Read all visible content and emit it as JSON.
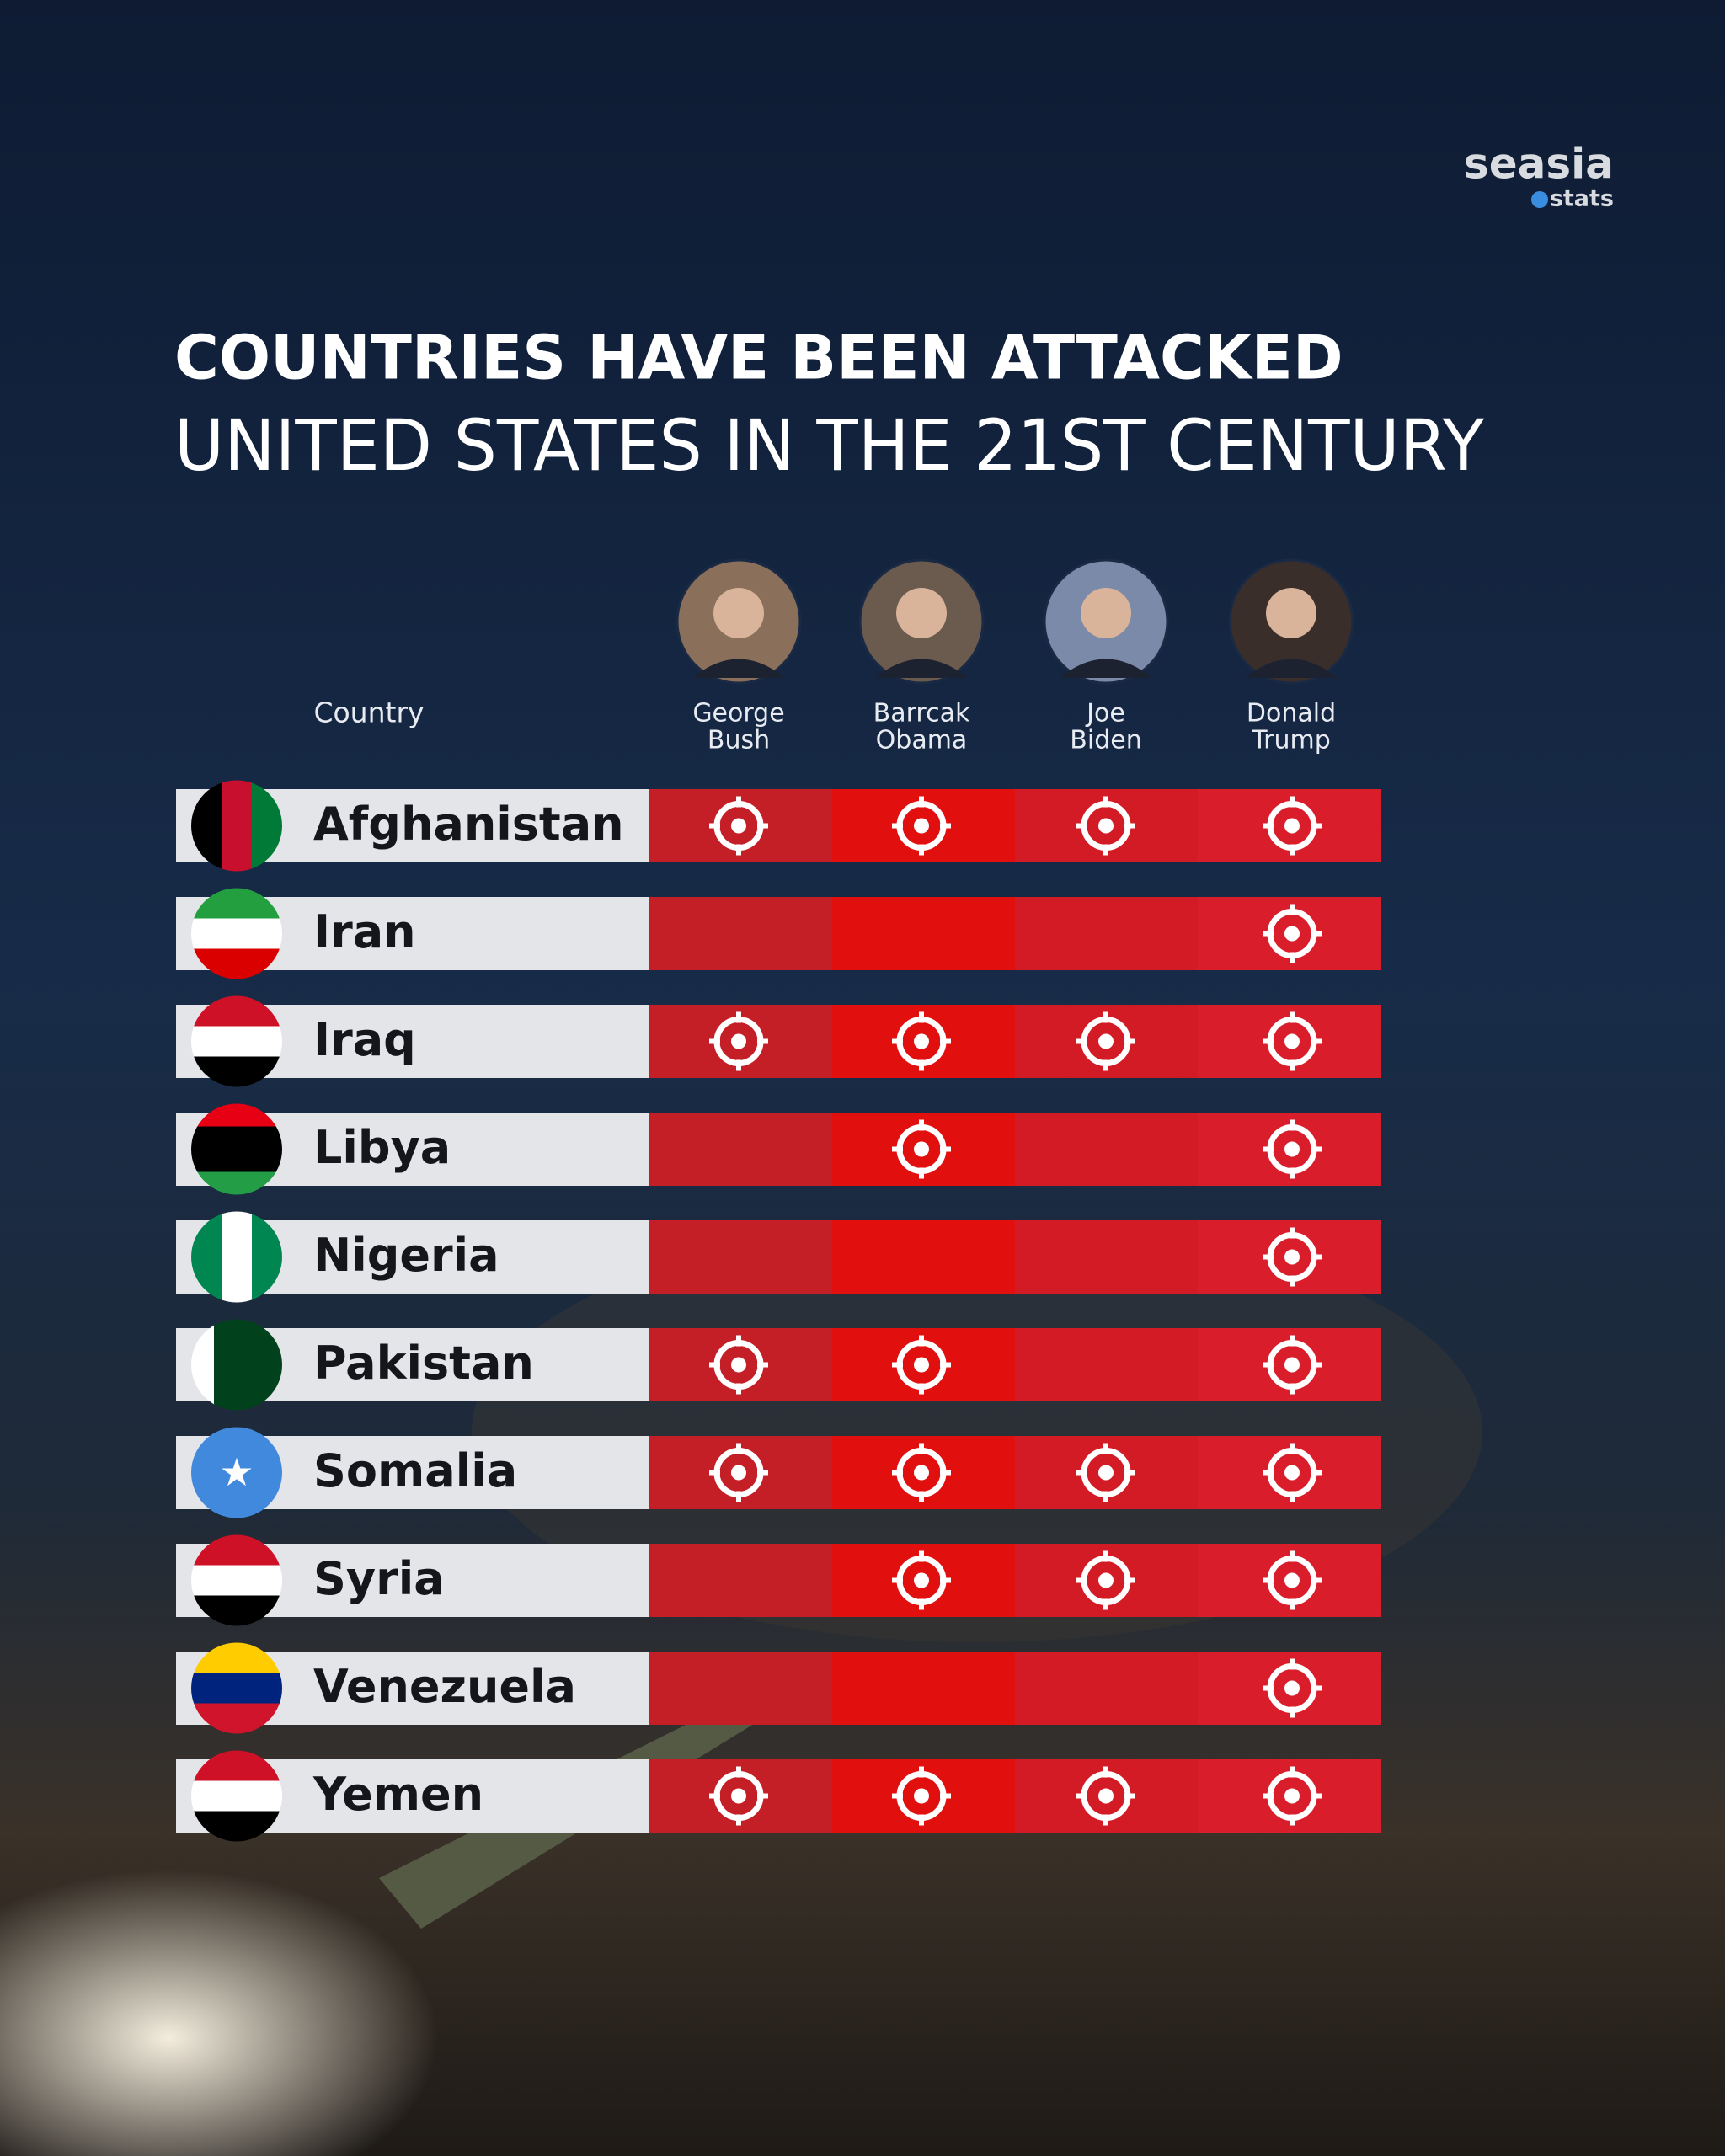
{
  "logo": {
    "brand": "seasia",
    "sub": "stats"
  },
  "header": {
    "title": "COUNTRIES HAVE BEEN ATTACKED",
    "subtitle": "UNITED STATES IN THE 21ST CENTURY"
  },
  "table": {
    "country_header": "Country",
    "presidents": [
      {
        "first": "George",
        "last": "Bush"
      },
      {
        "first": "Barrcak",
        "last": "Obama"
      },
      {
        "first": "Joe",
        "last": "Biden"
      },
      {
        "first": "Donald",
        "last": "Trump"
      }
    ],
    "rows": [
      {
        "country": "Afghanistan",
        "attacked": [
          true,
          true,
          true,
          true
        ]
      },
      {
        "country": "Iran",
        "attacked": [
          false,
          false,
          false,
          true
        ]
      },
      {
        "country": "Iraq",
        "attacked": [
          true,
          true,
          true,
          true
        ]
      },
      {
        "country": "Libya",
        "attacked": [
          false,
          true,
          false,
          true
        ]
      },
      {
        "country": "Nigeria",
        "attacked": [
          false,
          false,
          false,
          true
        ]
      },
      {
        "country": "Pakistan",
        "attacked": [
          true,
          true,
          false,
          true
        ]
      },
      {
        "country": "Somalia",
        "attacked": [
          true,
          true,
          true,
          true
        ]
      },
      {
        "country": "Syria",
        "attacked": [
          false,
          true,
          true,
          true
        ]
      },
      {
        "country": "Venezuela",
        "attacked": [
          false,
          false,
          false,
          true
        ]
      },
      {
        "country": "Yemen",
        "attacked": [
          true,
          true,
          true,
          true
        ]
      }
    ]
  }
}
